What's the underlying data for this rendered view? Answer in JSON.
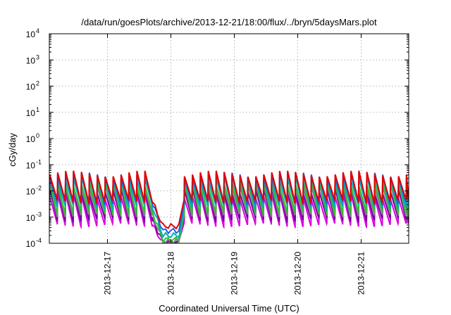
{
  "chart_data": {
    "type": "line",
    "title": "/data/run/goesPlots/archive/2013-12-21/18:00/flux/../bryn/5daysMars.plot",
    "xlabel": "Coordinated Universal Time (UTC)",
    "ylabel": "cGy/day",
    "yscale": "log",
    "ylim": [
      0.0001,
      10000
    ],
    "xlim": [
      "2013-12-16 02:00",
      "2013-12-21 18:00"
    ],
    "grid": true,
    "y_ticks": [
      {
        "base": "10",
        "exp": "-4",
        "value": 0.0001
      },
      {
        "base": "10",
        "exp": "-3",
        "value": 0.001
      },
      {
        "base": "10",
        "exp": "-2",
        "value": 0.01
      },
      {
        "base": "10",
        "exp": "-1",
        "value": 0.1
      },
      {
        "base": "10",
        "exp": "0",
        "value": 1
      },
      {
        "base": "10",
        "exp": "1",
        "value": 10
      },
      {
        "base": "10",
        "exp": "2",
        "value": 100
      },
      {
        "base": "10",
        "exp": "3",
        "value": 1000
      },
      {
        "base": "10",
        "exp": "4",
        "value": 10000
      }
    ],
    "x_ticks": [
      "2013-12-17",
      "2013-12-18",
      "2013-12-19",
      "2013-12-20",
      "2013-12-21"
    ],
    "sawtooth_period_hours": 3,
    "gap": [
      "2013-12-17 17:00",
      "2013-12-18 03:00"
    ],
    "series": [
      {
        "color": "#e00000",
        "peak": 0.045,
        "trough": 0.004,
        "gap_level": 0.00045
      },
      {
        "color": "#2060e0",
        "peak": 0.04,
        "trough": 0.0035,
        "gap_level": 0.0003
      },
      {
        "color": "#00b0b0",
        "peak": 0.03,
        "trough": 0.0025,
        "gap_level": 0.0002
      },
      {
        "color": "#30c030",
        "peak": 0.02,
        "trough": 0.0015,
        "gap_level": 0.00014
      },
      {
        "color": "#808080",
        "peak": 0.015,
        "trough": 0.0012,
        "gap_level": 0.00012
      },
      {
        "color": "#7000a0",
        "peak": 0.01,
        "trough": 0.0008,
        "gap_level": 0.00011
      },
      {
        "color": "#e000e0",
        "peak": 0.006,
        "trough": 0.0005,
        "gap_level": 0.0001
      }
    ]
  }
}
